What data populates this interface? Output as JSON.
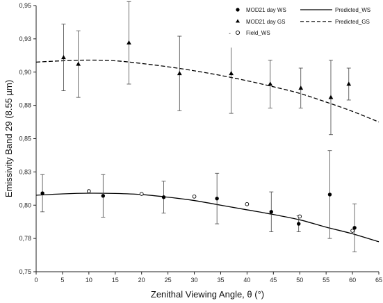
{
  "chart_data": {
    "type": "scatter",
    "xlabel": "Zenithal Viewing Angle, θ (°)",
    "ylabel": "Emissivity Band 29 (8.55 µm)",
    "xlim": [
      0,
      65
    ],
    "ylim": [
      0.75,
      0.95
    ],
    "x_ticks": [
      "0",
      "5",
      "10",
      "15",
      "20",
      "25",
      "30",
      "35",
      "40",
      "45",
      "50",
      "55",
      "60",
      "65"
    ],
    "y_ticks": [
      "0,75",
      "0,78",
      "0,80",
      "0,83",
      "0,85",
      "0,88",
      "0,90",
      "0,93",
      "0,95"
    ],
    "grid": false,
    "legend_placement": "top-right",
    "series": [
      {
        "name": "MOD21 day WS",
        "marker": "filled-circle",
        "x": [
          1.2,
          12.7,
          24.2,
          34.3,
          44.6,
          49.8,
          55.7,
          60.4
        ],
        "y": [
          0.809,
          0.807,
          0.806,
          0.805,
          0.795,
          0.786,
          0.808,
          0.783
        ],
        "error": [
          0.014,
          0.016,
          0.012,
          0.019,
          0.015,
          0.006,
          0.033,
          0.018
        ]
      },
      {
        "name": "MOD21 day GS",
        "marker": "filled-triangle",
        "x": [
          5.2,
          8.0,
          17.6,
          27.2,
          37.0,
          44.4,
          50.2,
          55.9,
          59.3
        ],
        "y": [
          0.911,
          0.906,
          0.922,
          0.899,
          0.899,
          0.891,
          0.888,
          0.881,
          0.891
        ],
        "error": [
          0.025,
          0.025,
          0.031,
          0.028,
          0.03,
          0.018,
          0.015,
          0.028,
          0.012
        ]
      },
      {
        "name": "Field_WS",
        "marker": "open-circle",
        "x": [
          10.0,
          20.0,
          30.0,
          40.0,
          50.0,
          60.0
        ],
        "y": [
          0.8105,
          0.8085,
          0.8065,
          0.8008,
          0.7915,
          0.7808
        ]
      },
      {
        "name": "Predicted_WS",
        "style": "solid",
        "x": [
          0,
          5,
          10,
          15,
          20,
          25,
          30,
          35,
          40,
          45,
          50,
          55,
          60,
          65
        ],
        "y": [
          0.8075,
          0.8085,
          0.809,
          0.8088,
          0.808,
          0.806,
          0.8035,
          0.8,
          0.7965,
          0.793,
          0.789,
          0.7835,
          0.7785,
          0.7725
        ]
      },
      {
        "name": "Predicted_GS",
        "style": "dashed",
        "x": [
          0,
          5,
          10,
          15,
          20,
          25,
          30,
          35,
          40,
          45,
          50,
          55,
          60,
          65
        ],
        "y": [
          0.9075,
          0.9085,
          0.909,
          0.9085,
          0.9065,
          0.904,
          0.901,
          0.8975,
          0.8935,
          0.889,
          0.884,
          0.8775,
          0.8705,
          0.8625
        ]
      }
    ]
  }
}
